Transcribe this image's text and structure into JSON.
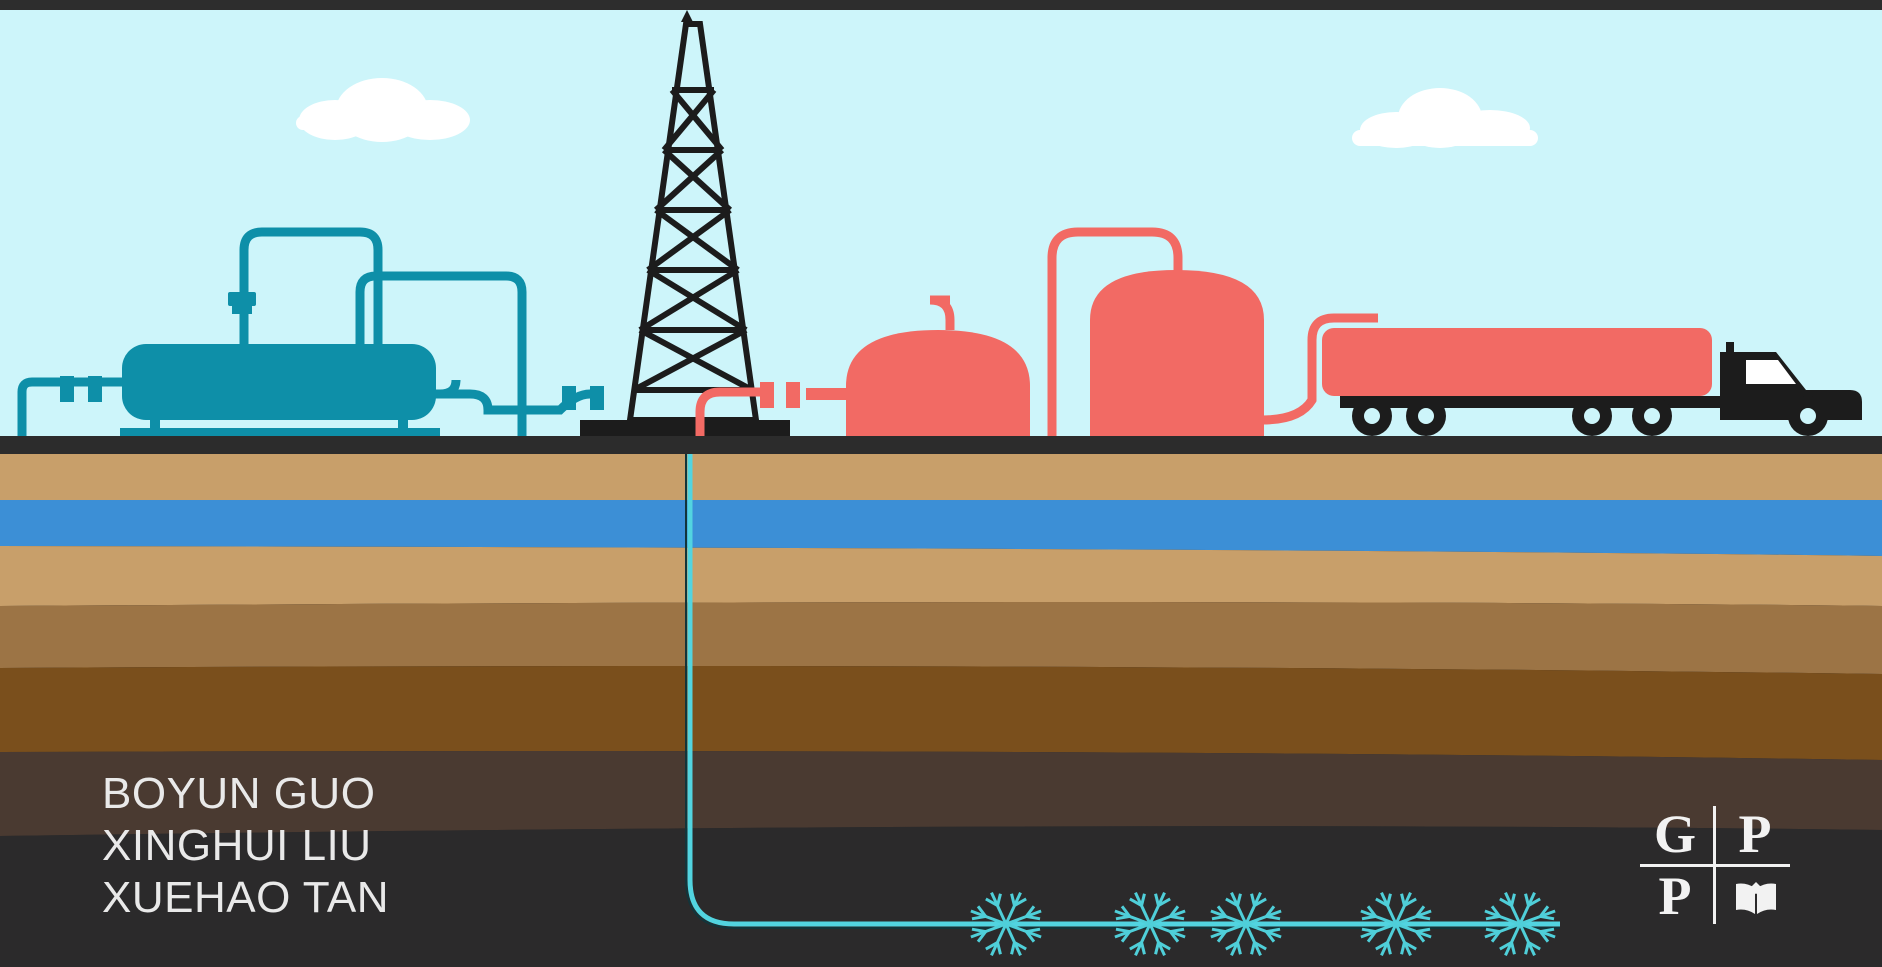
{
  "cover": {
    "authors": [
      "BOYUN GUO",
      "XINGHUI LIU",
      "XUEHAO TAN"
    ],
    "publisher_logo": {
      "top_left": "G",
      "top_right": "P",
      "bottom_left": "P",
      "bottom_right_icon": "book-icon"
    }
  },
  "colors": {
    "sky": "#cdf5fa",
    "surface": "#2c2c2c",
    "teal_equipment": "#0e8fa8",
    "red_equipment": "#f26a64",
    "water_layer": "#3c8fd6",
    "wellbore": "#52d4e0",
    "frac_star": "#4fcfd9"
  }
}
